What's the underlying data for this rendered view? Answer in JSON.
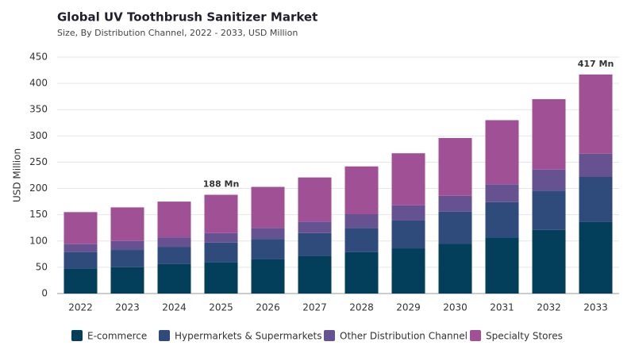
{
  "chart_data": {
    "type": "stacked_bar",
    "title": "Global UV Toothbrush Sanitizer Market",
    "subtitle": "Size, By Distribution Channel, 2022 - 2033, USD Million",
    "y_label": "USD Million",
    "categories": [
      "2022",
      "2023",
      "2024",
      "2025",
      "2026",
      "2027",
      "2028",
      "2029",
      "2030",
      "2031",
      "2032",
      "2033"
    ],
    "series": [
      {
        "name": "E-commerce",
        "color": "#033e5b",
        "values": [
          48,
          50,
          56,
          60,
          65,
          71,
          79,
          86,
          95,
          107,
          121,
          136
        ]
      },
      {
        "name": "Hypermarkets & Supermarkets",
        "color": "#2f4b7c",
        "values": [
          31,
          33,
          33,
          37,
          39,
          44,
          46,
          53,
          61,
          67,
          75,
          86
        ]
      },
      {
        "name": "Other Distribution Channel",
        "color": "#665191",
        "values": [
          15,
          17,
          18,
          18,
          21,
          22,
          26,
          29,
          30,
          34,
          40,
          44
        ]
      },
      {
        "name": "Specialty Stores",
        "color": "#a05195",
        "values": [
          61,
          64,
          68,
          73,
          78,
          84,
          91,
          99,
          110,
          122,
          134,
          151
        ]
      }
    ],
    "annotations": [
      {
        "x": "2025",
        "value": 188,
        "label": "188 Mn"
      },
      {
        "x": "2033",
        "value": 417,
        "label": "417 Mn"
      }
    ],
    "ylim": [
      0,
      450
    ],
    "yticks": [
      0,
      50,
      100,
      150,
      200,
      250,
      300,
      350,
      400,
      450
    ],
    "grid": true
  }
}
